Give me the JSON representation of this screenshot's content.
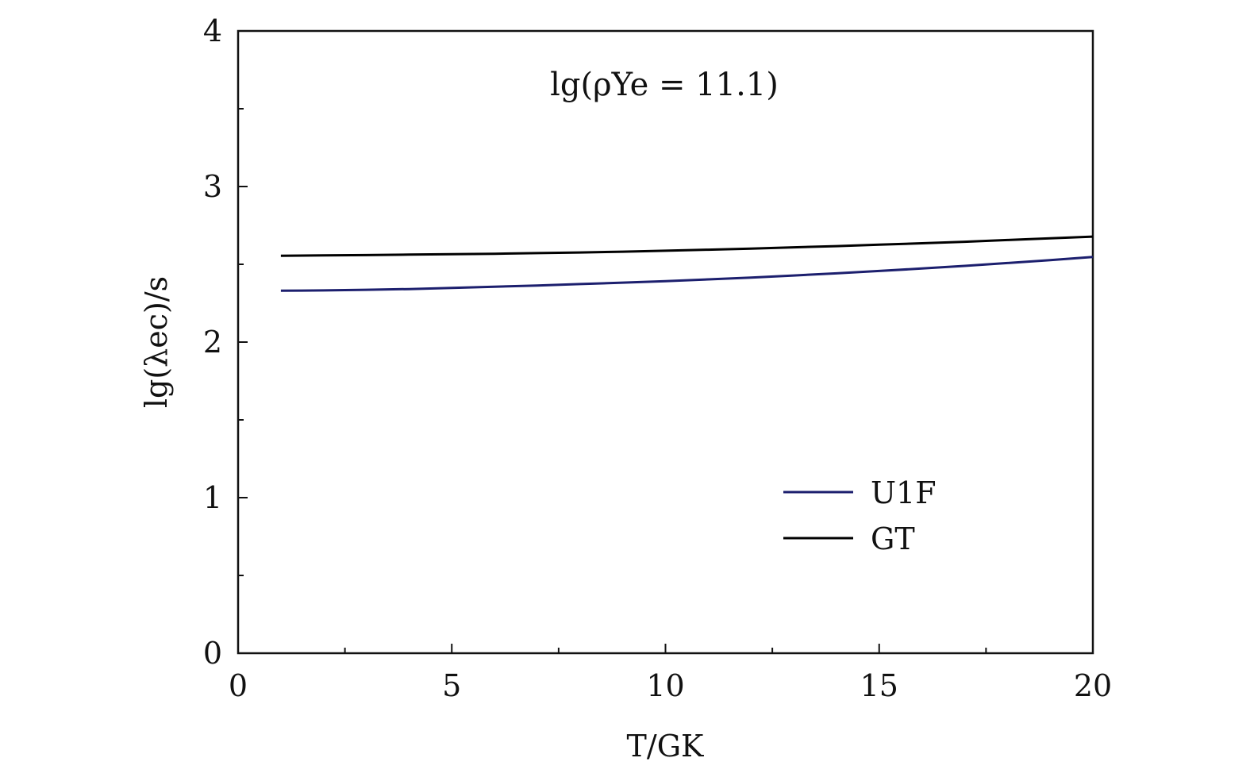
{
  "chart_data": {
    "type": "line",
    "xlabel": "T/GK",
    "ylabel": "lg(λec)/s",
    "annotation": "lg(ρYe = 11.1)",
    "xlim": [
      0,
      20
    ],
    "ylim": [
      0,
      4
    ],
    "xticks": [
      "0",
      "5",
      "10",
      "15",
      "20"
    ],
    "yticks": [
      "0",
      "1",
      "2",
      "3",
      "4"
    ],
    "grid": false,
    "legend_position": "bottom-right",
    "series": [
      {
        "name": "U1F",
        "color": "#1c1f6e",
        "x": [
          1,
          2,
          3,
          4,
          5,
          6,
          7,
          8,
          9,
          10,
          11,
          12,
          13,
          14,
          15,
          16,
          17,
          18,
          19,
          20
        ],
        "y": [
          2.33,
          2.332,
          2.336,
          2.341,
          2.348,
          2.356,
          2.364,
          2.373,
          2.382,
          2.392,
          2.403,
          2.415,
          2.428,
          2.442,
          2.457,
          2.473,
          2.49,
          2.508,
          2.527,
          2.547
        ]
      },
      {
        "name": "GT",
        "color": "#000000",
        "x": [
          1,
          2,
          3,
          4,
          5,
          6,
          7,
          8,
          9,
          10,
          11,
          12,
          13,
          14,
          15,
          16,
          17,
          18,
          19,
          20
        ],
        "y": [
          2.555,
          2.557,
          2.559,
          2.562,
          2.565,
          2.568,
          2.572,
          2.576,
          2.581,
          2.587,
          2.594,
          2.601,
          2.609,
          2.617,
          2.626,
          2.635,
          2.645,
          2.656,
          2.667,
          2.678
        ]
      }
    ]
  }
}
